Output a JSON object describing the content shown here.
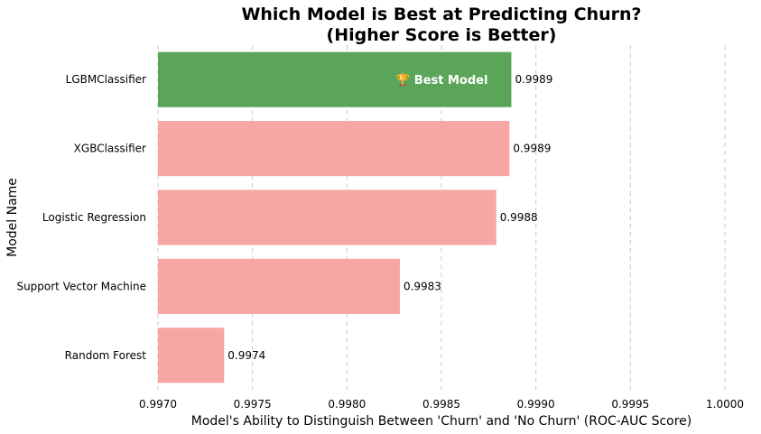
{
  "chart_data": {
    "type": "bar",
    "orientation": "horizontal",
    "title": [
      "Which Model is Best at Predicting Churn?",
      "(Higher Score is Better)"
    ],
    "xlabel": "Model's Ability to Distinguish Between 'Churn' and 'No Churn' (ROC-AUC Score)",
    "ylabel": "Model Name",
    "xlim": [
      0.997,
      1.0
    ],
    "xticks": [
      "0.9970",
      "0.9975",
      "0.9980",
      "0.9985",
      "0.9990",
      "0.9995",
      "1.0000"
    ],
    "grid": "x-dashed",
    "categories": [
      "LGBMClassifier",
      "XGBClassifier",
      "Logistic Regression",
      "Support Vector Machine",
      "Random Forest"
    ],
    "values": [
      0.99887,
      0.99886,
      0.99879,
      0.99828,
      0.99735
    ],
    "value_labels": [
      "0.9989",
      "0.9989",
      "0.9988",
      "0.9983",
      "0.9974"
    ],
    "highlight_index": 0,
    "annotation": "🏆 Best Model",
    "colors": {
      "highlight": "#5aa55a",
      "default": "#f8a5a5"
    }
  }
}
